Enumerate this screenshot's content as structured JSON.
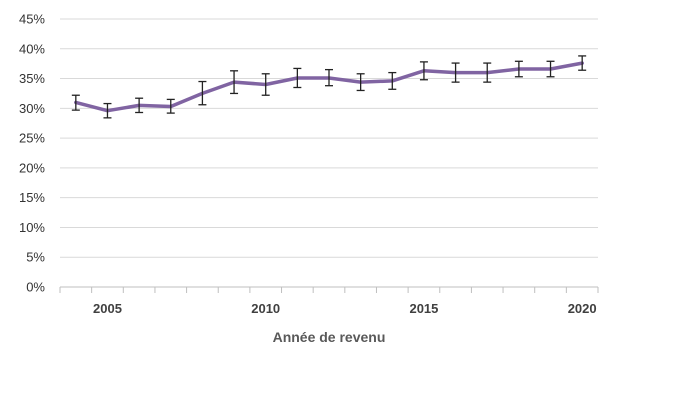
{
  "chart_data": {
    "type": "line",
    "title": "",
    "xlabel": "Année de revenu",
    "ylabel": "",
    "xlim": [
      2003.5,
      2020.5
    ],
    "ylim": [
      0,
      45
    ],
    "y_ticks": [
      0,
      5,
      10,
      15,
      20,
      25,
      30,
      35,
      40,
      45
    ],
    "y_tick_labels": [
      "0%",
      "5%",
      "10%",
      "15%",
      "20%",
      "25%",
      "30%",
      "35%",
      "40%",
      "45%"
    ],
    "x_ticks": [
      2005,
      2010,
      2015,
      2020
    ],
    "x_tick_labels": [
      "2005",
      "2010",
      "2015",
      "2020"
    ],
    "grid": "horizontal",
    "legend": "none",
    "series": [
      {
        "color": "#8064A2",
        "x": [
          2004,
          2005,
          2006,
          2007,
          2008,
          2009,
          2010,
          2011,
          2012,
          2013,
          2014,
          2015,
          2016,
          2017,
          2018,
          2019,
          2020
        ],
        "y": [
          31.0,
          29.6,
          30.5,
          30.3,
          32.5,
          34.4,
          34.0,
          35.1,
          35.1,
          34.4,
          34.6,
          36.3,
          36.0,
          36.0,
          36.6,
          36.6,
          37.6
        ],
        "error_low": [
          29.7,
          28.4,
          29.3,
          29.2,
          30.6,
          32.5,
          32.2,
          33.5,
          33.8,
          33.0,
          33.2,
          34.8,
          34.4,
          34.4,
          35.3,
          35.3,
          36.4
        ],
        "error_high": [
          32.2,
          30.8,
          31.7,
          31.5,
          34.5,
          36.3,
          35.8,
          36.7,
          36.5,
          35.8,
          36.0,
          37.8,
          37.6,
          37.6,
          37.9,
          37.9,
          38.8
        ]
      }
    ]
  }
}
